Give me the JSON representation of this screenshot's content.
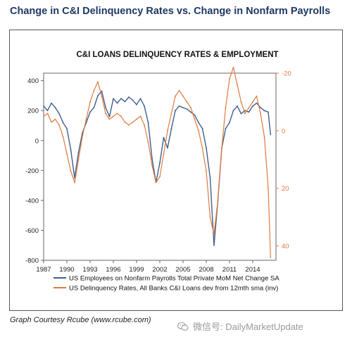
{
  "page": {
    "title": "Change in C&I Delinquency Rates vs. Change in Nonfarm Payrolls",
    "credit": "Graph Courtesy Rcube (www.rcube.com)",
    "watermark": "微信号: DailyMarketUpdate"
  },
  "chart_data": {
    "type": "line",
    "title": "C&I LOANS DELINQUENCY RATES & EMPLOYMENT",
    "x_tick_labels": [
      "1987",
      "1990",
      "1993",
      "1996",
      "1999",
      "2002",
      "2005",
      "2008",
      "2011",
      "2014"
    ],
    "x_ticks": [
      1987,
      1990,
      1993,
      1996,
      1999,
      2002,
      2005,
      2008,
      2011,
      2014
    ],
    "xlim": [
      1987,
      2017
    ],
    "left_axis": {
      "ylim": [
        -800,
        450
      ],
      "ticks": [
        400,
        200,
        0,
        -200,
        -400,
        -600,
        -800
      ],
      "tick_labels": [
        "400",
        "200",
        "0",
        "-200",
        "-400",
        "-600",
        "-800"
      ]
    },
    "right_axis": {
      "ylim": [
        -20,
        45
      ],
      "inverted": true,
      "ticks": [
        -20,
        0,
        20,
        40
      ],
      "tick_labels": [
        "-20",
        "0",
        "20",
        "40"
      ],
      "color": "#e07a3c"
    },
    "legend_position": "bottom",
    "grid": false,
    "series": [
      {
        "name": "US Employees on Nonfarm Payrolls Total Private MoM Net Change SA",
        "axis": "left",
        "color": "#3f5f8f",
        "x": [
          1987.0,
          1987.5,
          1988.0,
          1988.5,
          1989.0,
          1989.5,
          1990.0,
          1990.5,
          1991.0,
          1991.5,
          1992.0,
          1992.5,
          1993.0,
          1993.5,
          1994.0,
          1994.5,
          1995.0,
          1995.5,
          1996.0,
          1996.5,
          1997.0,
          1997.5,
          1998.0,
          1998.5,
          1999.0,
          1999.5,
          2000.0,
          2000.5,
          2001.0,
          2001.5,
          2002.0,
          2002.5,
          2003.0,
          2003.5,
          2004.0,
          2004.5,
          2005.0,
          2005.5,
          2006.0,
          2006.5,
          2007.0,
          2007.5,
          2008.0,
          2008.5,
          2009.0,
          2009.5,
          2010.0,
          2010.5,
          2011.0,
          2011.5,
          2012.0,
          2012.5,
          2013.0,
          2013.5,
          2014.0,
          2014.5,
          2015.0,
          2015.5,
          2016.0,
          2016.3
        ],
        "y": [
          230,
          200,
          250,
          220,
          180,
          120,
          80,
          -60,
          -250,
          -80,
          50,
          120,
          190,
          220,
          300,
          330,
          220,
          160,
          280,
          250,
          280,
          260,
          290,
          270,
          240,
          280,
          230,
          120,
          -120,
          -280,
          -150,
          20,
          -50,
          80,
          200,
          230,
          220,
          210,
          190,
          170,
          120,
          80,
          -50,
          -250,
          -700,
          -400,
          -50,
          80,
          120,
          200,
          230,
          180,
          200,
          190,
          230,
          250,
          220,
          200,
          190,
          40
        ]
      },
      {
        "name": "US Delinquency Rates, All Banks C&I Loans dev from 12mth sma (inv)",
        "axis": "right",
        "color": "#e07a3c",
        "x": [
          1987.0,
          1987.5,
          1988.0,
          1988.5,
          1989.0,
          1989.5,
          1990.0,
          1990.5,
          1991.0,
          1991.5,
          1992.0,
          1992.5,
          1993.0,
          1993.5,
          1994.0,
          1994.5,
          1995.0,
          1995.5,
          1996.0,
          1996.5,
          1997.0,
          1997.5,
          1998.0,
          1998.5,
          1999.0,
          1999.5,
          2000.0,
          2000.5,
          2001.0,
          2001.5,
          2002.0,
          2002.5,
          2003.0,
          2003.5,
          2004.0,
          2004.5,
          2005.0,
          2005.5,
          2006.0,
          2006.5,
          2007.0,
          2007.5,
          2008.0,
          2008.5,
          2009.0,
          2009.5,
          2010.0,
          2010.5,
          2011.0,
          2011.5,
          2012.0,
          2012.5,
          2013.0,
          2013.5,
          2014.0,
          2014.5,
          2015.0,
          2015.5,
          2016.0,
          2016.3
        ],
        "y": [
          -5,
          -6,
          -3,
          -4,
          -2,
          2,
          8,
          14,
          18,
          10,
          2,
          -4,
          -10,
          -14,
          -17,
          -12,
          -6,
          -4,
          -5,
          -6,
          -5,
          -3,
          -2,
          -3,
          -4,
          -5,
          -2,
          4,
          12,
          18,
          16,
          8,
          0,
          -6,
          -12,
          -14,
          -12,
          -10,
          -8,
          -4,
          0,
          6,
          14,
          30,
          36,
          24,
          6,
          -8,
          -18,
          -22,
          -16,
          -10,
          -6,
          -8,
          -10,
          -12,
          -6,
          2,
          20,
          44
        ]
      }
    ]
  }
}
